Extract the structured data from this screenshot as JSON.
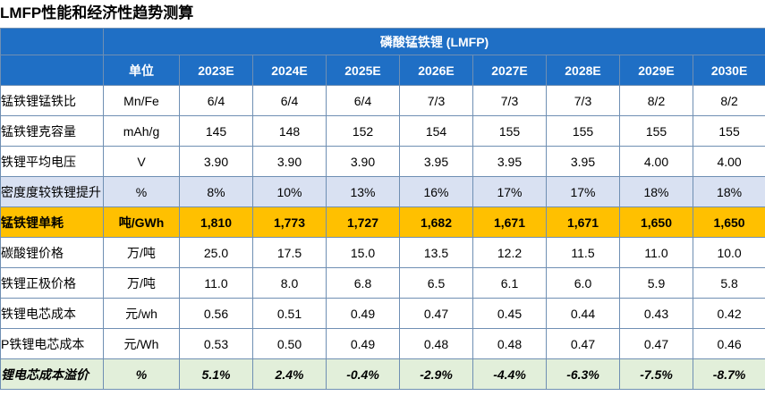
{
  "page": {
    "title": "LMFP性能和经济性趋势测算"
  },
  "table": {
    "banner": "磷酸锰铁锂 (LMFP)",
    "header": {
      "label": "",
      "unit": "单位",
      "years": [
        "2023E",
        "2024E",
        "2025E",
        "2026E",
        "2027E",
        "2028E",
        "2029E",
        "2030E"
      ]
    },
    "rows": [
      {
        "label": "锰铁锂锰铁比",
        "unit": "Mn/Fe",
        "values": [
          "6/4",
          "6/4",
          "6/4",
          "7/3",
          "7/3",
          "7/3",
          "8/2",
          "8/2"
        ]
      },
      {
        "label": "锰铁锂克容量",
        "unit": "mAh/g",
        "values": [
          "145",
          "148",
          "152",
          "154",
          "155",
          "155",
          "155",
          "155"
        ]
      },
      {
        "label": "铁锂平均电压",
        "unit": "V",
        "values": [
          "3.90",
          "3.90",
          "3.90",
          "3.95",
          "3.95",
          "3.95",
          "4.00",
          "4.00"
        ]
      },
      {
        "label": "密度度较铁锂提升",
        "unit": "%",
        "values": [
          "8%",
          "10%",
          "13%",
          "16%",
          "17%",
          "17%",
          "18%",
          "18%"
        ]
      },
      {
        "label": "锰铁锂单耗",
        "unit": "吨/GWh",
        "values": [
          "1,810",
          "1,773",
          "1,727",
          "1,682",
          "1,671",
          "1,671",
          "1,650",
          "1,650"
        ]
      },
      {
        "label": "碳酸锂价格",
        "unit": "万/吨",
        "values": [
          "25.0",
          "17.5",
          "15.0",
          "13.5",
          "12.2",
          "11.5",
          "11.0",
          "10.0"
        ]
      },
      {
        "label": "铁锂正极价格",
        "unit": "万/吨",
        "values": [
          "11.0",
          "8.0",
          "6.8",
          "6.5",
          "6.1",
          "6.0",
          "5.9",
          "5.8"
        ]
      },
      {
        "label": "铁锂电芯成本",
        "unit": "元/wh",
        "values": [
          "0.56",
          "0.51",
          "0.49",
          "0.47",
          "0.45",
          "0.44",
          "0.43",
          "0.42"
        ]
      },
      {
        "label": "P铁锂电芯成本",
        "unit": "元/Wh",
        "values": [
          "0.53",
          "0.50",
          "0.49",
          "0.48",
          "0.48",
          "0.47",
          "0.47",
          "0.46"
        ]
      },
      {
        "label": "锂电芯成本溢价",
        "unit": "%",
        "values": [
          "5.1%",
          "2.4%",
          "-0.4%",
          "-2.9%",
          "-4.4%",
          "-6.3%",
          "-7.5%",
          "-8.7%"
        ]
      }
    ]
  },
  "colors": {
    "header_blue": "#1f6fc5",
    "border": "#6f8fb3",
    "lavender_row": "#d9e1f2",
    "highlight_row": "#ffc000",
    "green_row": "#e2efda"
  }
}
